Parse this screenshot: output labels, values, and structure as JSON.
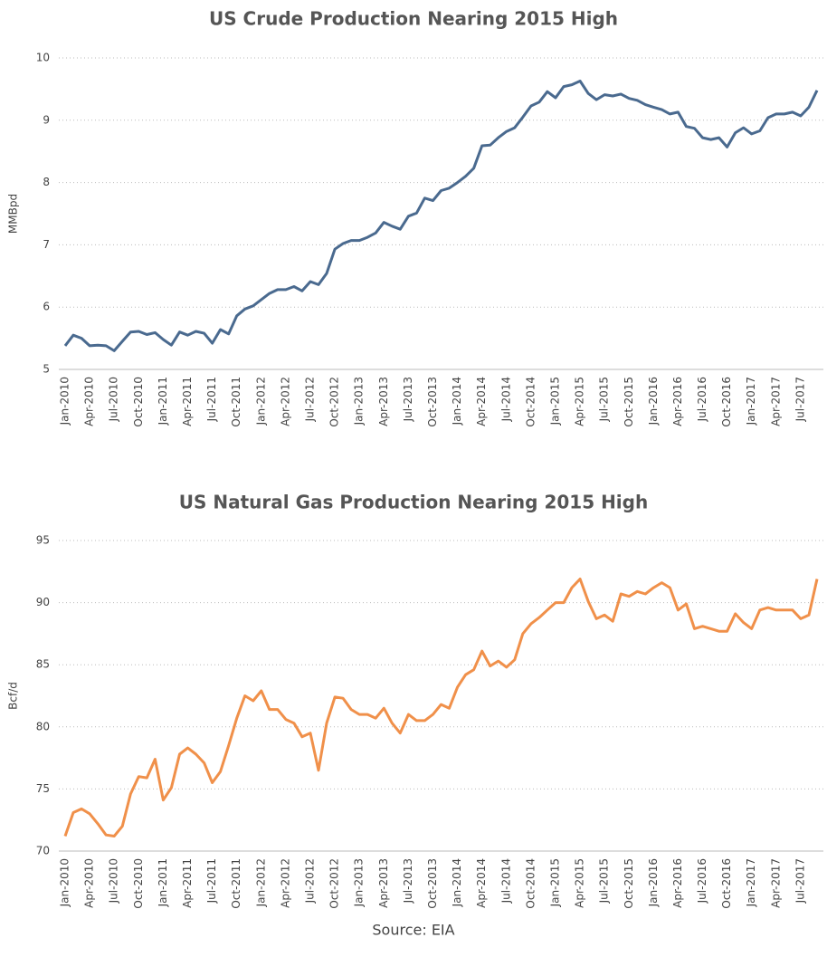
{
  "chart_data": [
    {
      "type": "line",
      "title": "US Crude Production Nearing 2015 High",
      "y_label": "MMBpd",
      "categories": [
        "Jan-2010",
        null,
        null,
        "Apr-2010",
        null,
        null,
        "Jul-2010",
        null,
        null,
        "Oct-2010",
        null,
        null,
        "Jan-2011",
        null,
        null,
        "Apr-2011",
        null,
        null,
        "Jul-2011",
        null,
        null,
        "Oct-2011",
        null,
        null,
        "Jan-2012",
        null,
        null,
        "Apr-2012",
        null,
        null,
        "Jul-2012",
        null,
        null,
        "Oct-2012",
        null,
        null,
        "Jan-2013",
        null,
        null,
        "Apr-2013",
        null,
        null,
        "Jul-2013",
        null,
        null,
        "Oct-2013",
        null,
        null,
        "Jan-2014",
        null,
        null,
        "Apr-2014",
        null,
        null,
        "Jul-2014",
        null,
        null,
        "Oct-2014",
        null,
        null,
        "Jan-2015",
        null,
        null,
        "Apr-2015",
        null,
        null,
        "Jul-2015",
        null,
        null,
        "Oct-2015",
        null,
        null,
        "Jan-2016",
        null,
        null,
        "Apr-2016",
        null,
        null,
        "Jul-2016",
        null,
        null,
        "Oct-2016",
        null,
        null,
        "Jan-2017",
        null,
        null,
        "Apr-2017",
        null,
        null,
        "Jul-2017",
        null,
        null
      ],
      "series": [
        {
          "color": "#4a6a8f",
          "values": [
            5.38,
            5.55,
            5.5,
            5.38,
            5.39,
            5.38,
            5.3,
            5.45,
            5.6,
            5.61,
            5.56,
            5.59,
            5.48,
            5.39,
            5.6,
            5.55,
            5.61,
            5.58,
            5.42,
            5.64,
            5.57,
            5.86,
            5.97,
            6.02,
            6.12,
            6.22,
            6.28,
            6.28,
            6.33,
            6.26,
            6.41,
            6.36,
            6.54,
            6.93,
            7.02,
            7.07,
            7.07,
            7.12,
            7.19,
            7.36,
            7.3,
            7.25,
            7.46,
            7.51,
            7.75,
            7.71,
            7.87,
            7.91,
            8.0,
            8.1,
            8.23,
            8.59,
            8.6,
            8.72,
            8.82,
            8.88,
            9.05,
            9.23,
            9.29,
            9.46,
            9.36,
            9.54,
            9.57,
            9.63,
            9.43,
            9.33,
            9.41,
            9.39,
            9.42,
            9.35,
            9.32,
            9.25,
            9.21,
            9.17,
            9.1,
            9.13,
            8.9,
            8.87,
            8.72,
            8.69,
            8.72,
            8.57,
            8.8,
            8.88,
            8.78,
            8.83,
            9.04,
            9.1,
            9.1,
            9.13,
            9.07,
            9.21,
            9.48
          ]
        }
      ],
      "ylim": [
        5,
        10
      ],
      "yticks": [
        5,
        6,
        7,
        8,
        9,
        10
      ],
      "grid": true
    },
    {
      "type": "line",
      "title": "US Natural Gas Production Nearing 2015 High",
      "y_label": "Bcf/d",
      "categories": [
        "Jan-2010",
        null,
        null,
        "Apr-2010",
        null,
        null,
        "Jul-2010",
        null,
        null,
        "Oct-2010",
        null,
        null,
        "Jan-2011",
        null,
        null,
        "Apr-2011",
        null,
        null,
        "Jul-2011",
        null,
        null,
        "Oct-2011",
        null,
        null,
        "Jan-2012",
        null,
        null,
        "Apr-2012",
        null,
        null,
        "Jul-2012",
        null,
        null,
        "Oct-2012",
        null,
        null,
        "Jan-2013",
        null,
        null,
        "Apr-2013",
        null,
        null,
        "Jul-2013",
        null,
        null,
        "Oct-2013",
        null,
        null,
        "Jan-2014",
        null,
        null,
        "Apr-2014",
        null,
        null,
        "Jul-2014",
        null,
        null,
        "Oct-2014",
        null,
        null,
        "Jan-2015",
        null,
        null,
        "Apr-2015",
        null,
        null,
        "Jul-2015",
        null,
        null,
        "Oct-2015",
        null,
        null,
        "Jan-2016",
        null,
        null,
        "Apr-2016",
        null,
        null,
        "Jul-2016",
        null,
        null,
        "Oct-2016",
        null,
        null,
        "Jan-2017",
        null,
        null,
        "Apr-2017",
        null,
        null,
        "Jul-2017",
        null,
        null
      ],
      "series": [
        {
          "color": "#f0904a",
          "values": [
            71.2,
            73.1,
            73.4,
            73.0,
            72.2,
            71.3,
            71.2,
            72.0,
            74.6,
            76.0,
            75.9,
            77.4,
            74.1,
            75.1,
            77.8,
            78.3,
            77.8,
            77.1,
            75.5,
            76.4,
            78.5,
            80.7,
            82.5,
            82.1,
            82.9,
            81.4,
            81.4,
            80.6,
            80.3,
            79.2,
            79.5,
            76.5,
            80.3,
            82.4,
            82.3,
            81.4,
            81.0,
            81.0,
            80.7,
            81.5,
            80.3,
            79.5,
            81.0,
            80.5,
            80.5,
            81.0,
            81.8,
            81.5,
            83.2,
            84.2,
            84.6,
            86.1,
            84.9,
            85.3,
            84.8,
            85.4,
            87.5,
            88.3,
            88.8,
            89.4,
            90.0,
            90.0,
            91.2,
            91.9,
            90.1,
            88.7,
            89.0,
            88.5,
            90.7,
            90.5,
            90.9,
            90.7,
            91.2,
            91.6,
            91.2,
            89.4,
            89.9,
            87.9,
            88.1,
            87.9,
            87.7,
            87.7,
            89.1,
            88.4,
            87.9,
            89.4,
            89.6,
            89.4,
            89.4,
            89.4,
            88.7,
            89.0,
            91.9
          ]
        }
      ],
      "ylim": [
        70,
        95
      ],
      "yticks": [
        70,
        75,
        80,
        85,
        90,
        95
      ],
      "grid": true
    }
  ],
  "source": "Source: EIA"
}
